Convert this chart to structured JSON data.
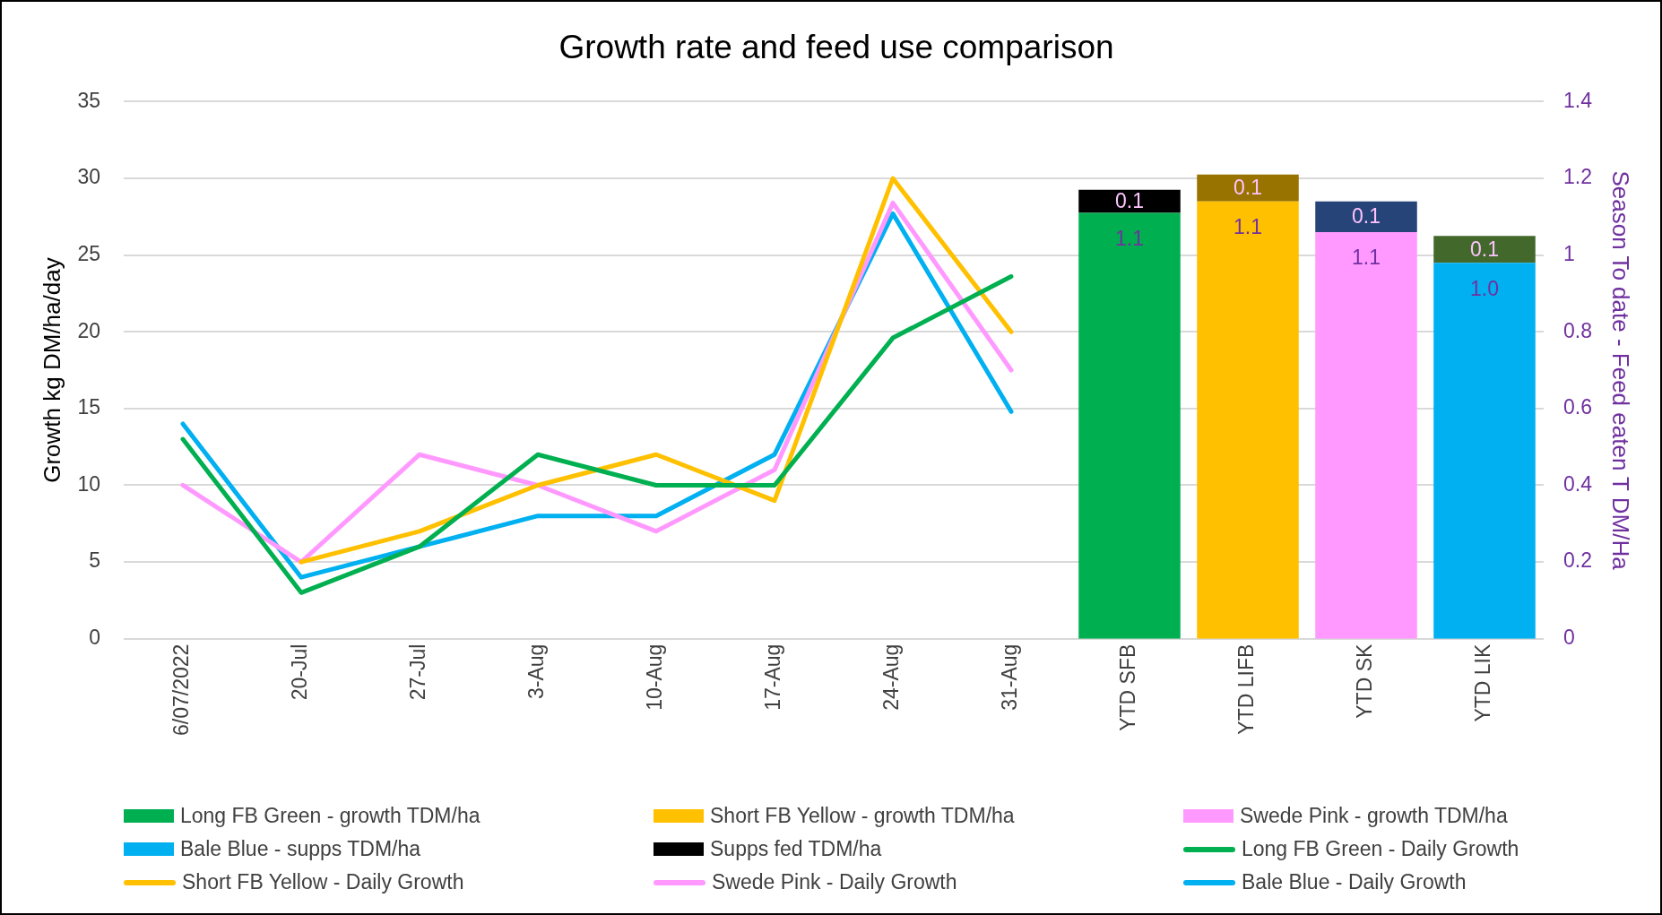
{
  "chart_data": {
    "type": "line",
    "title": "Growth rate and feed use comparison",
    "ylabel": "Growth kg DM/ha/day",
    "y2label": "Season To date - Feed eaten T DM/Ha",
    "categories": [
      "6/07/2022",
      "20-Jul",
      "27-Jul",
      "3-Aug",
      "10-Aug",
      "17-Aug",
      "24-Aug",
      "31-Aug",
      "YTD SFB",
      "YTD LIFB",
      "YTD SK",
      "YTD LIK"
    ],
    "ylim": [
      0,
      35
    ],
    "yticks": [
      0,
      5,
      10,
      15,
      20,
      25,
      30,
      35
    ],
    "y2lim": [
      0,
      1.4
    ],
    "y2ticks": [
      0,
      0.2,
      0.4,
      0.6,
      0.8,
      1,
      1.2,
      1.4
    ],
    "stacked": true,
    "grid": "y",
    "legend": "bottom",
    "series": [
      {
        "name": "Long FB Green - growth TDM/ha",
        "type": "bar",
        "axis": "y2",
        "color": "#00b050",
        "values": [
          null,
          null,
          null,
          null,
          null,
          null,
          null,
          null,
          1.11,
          null,
          null,
          null
        ],
        "value_labels": [
          null,
          null,
          null,
          null,
          null,
          null,
          null,
          null,
          "1.1",
          null,
          null,
          null
        ]
      },
      {
        "name": "Short FB Yellow - growth TDM/ha",
        "type": "bar",
        "axis": "y2",
        "color": "#ffc000",
        "values": [
          null,
          null,
          null,
          null,
          null,
          null,
          null,
          null,
          null,
          1.14,
          null,
          null
        ],
        "value_labels": [
          null,
          null,
          null,
          null,
          null,
          null,
          null,
          null,
          null,
          "1.1",
          null,
          null
        ]
      },
      {
        "name": "Swede Pink - growth TDM/ha",
        "type": "bar",
        "axis": "y2",
        "color": "#ff99ff",
        "values": [
          null,
          null,
          null,
          null,
          null,
          null,
          null,
          null,
          null,
          null,
          1.06,
          null
        ],
        "value_labels": [
          null,
          null,
          null,
          null,
          null,
          null,
          null,
          null,
          null,
          null,
          "1.1",
          null
        ]
      },
      {
        "name": "Bale Blue - supps TDM/ha",
        "type": "bar",
        "axis": "y2",
        "color": "#00b0f0",
        "values": [
          null,
          null,
          null,
          null,
          null,
          null,
          null,
          null,
          null,
          null,
          null,
          0.98
        ],
        "value_labels": [
          null,
          null,
          null,
          null,
          null,
          null,
          null,
          null,
          null,
          null,
          null,
          "1.0"
        ]
      },
      {
        "name": "Supps fed TDM/ha",
        "type": "bar",
        "axis": "y2",
        "color": "#000000",
        "colors": [
          null,
          null,
          null,
          null,
          null,
          null,
          null,
          null,
          "#000000",
          "#997300",
          "#264478",
          "#43682b"
        ],
        "values": [
          null,
          null,
          null,
          null,
          null,
          null,
          null,
          null,
          0.06,
          0.07,
          0.08,
          0.07
        ],
        "value_labels": [
          null,
          null,
          null,
          null,
          null,
          null,
          null,
          null,
          "0.1",
          "0.1",
          "0.1",
          "0.1"
        ]
      },
      {
        "name": "Long FB Green - Daily Growth",
        "color": "#00b050",
        "values": [
          13,
          3,
          6,
          12,
          10,
          10,
          19.6,
          23.6,
          null,
          null,
          null,
          null
        ]
      },
      {
        "name": "Short FB Yellow - Daily Growth",
        "color": "#ffc000",
        "values": [
          null,
          5,
          7,
          10,
          12,
          9,
          30,
          20,
          null,
          null,
          null,
          null
        ]
      },
      {
        "name": "Swede Pink - Daily Growth",
        "color": "#ff99ff",
        "values": [
          10,
          5,
          12,
          10,
          7,
          11,
          28.4,
          17.5,
          null,
          null,
          null,
          null
        ]
      },
      {
        "name": "Bale Blue - Daily Growth",
        "color": "#00b0f0",
        "values": [
          14,
          4,
          6,
          8,
          8,
          12,
          27.7,
          14.8,
          null,
          null,
          null,
          null
        ]
      }
    ]
  }
}
